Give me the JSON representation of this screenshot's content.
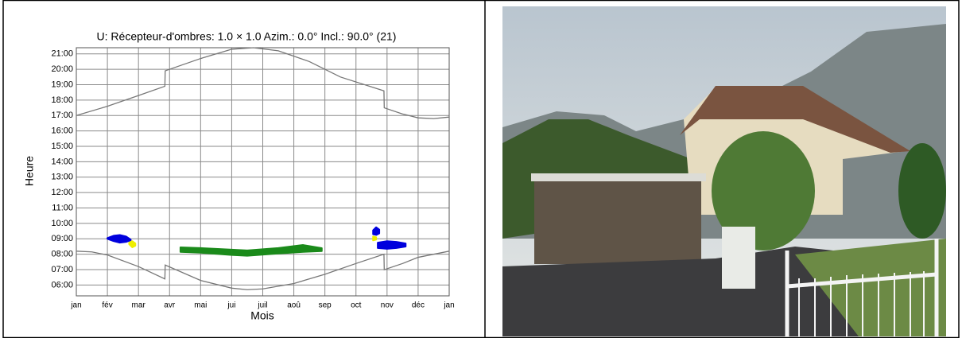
{
  "chart_data": {
    "type": "line",
    "title": "U: Récepteur-d'ombres: 1.0 × 1.0  Azim.: 0.0°  Incl.: 90.0° (21)",
    "xlabel": "Mois",
    "ylabel": "Heure",
    "xlim": [
      0,
      12
    ],
    "ylim": [
      5.3,
      21.4
    ],
    "xticks": [
      {
        "value": 0,
        "label": "jan"
      },
      {
        "value": 1,
        "label": "fév"
      },
      {
        "value": 2,
        "label": "mar"
      },
      {
        "value": 3,
        "label": "avr"
      },
      {
        "value": 4,
        "label": "mai"
      },
      {
        "value": 5,
        "label": "jui"
      },
      {
        "value": 6,
        "label": "juil"
      },
      {
        "value": 7,
        "label": "aoû"
      },
      {
        "value": 8,
        "label": "sep"
      },
      {
        "value": 9,
        "label": "oct"
      },
      {
        "value": 10,
        "label": "nov"
      },
      {
        "value": 11,
        "label": "déc"
      },
      {
        "value": 12,
        "label": "jan"
      }
    ],
    "yticks": [
      {
        "value": 6,
        "label": "06:00"
      },
      {
        "value": 7,
        "label": "07:00"
      },
      {
        "value": 8,
        "label": "08:00"
      },
      {
        "value": 9,
        "label": "09:00"
      },
      {
        "value": 10,
        "label": "10:00"
      },
      {
        "value": 11,
        "label": "11:00"
      },
      {
        "value": 12,
        "label": "12:00"
      },
      {
        "value": 13,
        "label": "13:00"
      },
      {
        "value": 14,
        "label": "14:00"
      },
      {
        "value": 15,
        "label": "15:00"
      },
      {
        "value": 16,
        "label": "16:00"
      },
      {
        "value": 17,
        "label": "17:00"
      },
      {
        "value": 18,
        "label": "18:00"
      },
      {
        "value": 19,
        "label": "19:00"
      },
      {
        "value": 20,
        "label": "20:00"
      },
      {
        "value": 21,
        "label": "21:00"
      }
    ],
    "grid": true,
    "series": [
      {
        "color": "#777777",
        "x": [
          0,
          1,
          2,
          2.85,
          2.86,
          4,
          5,
          5.7,
          6.5,
          7.5,
          8.5,
          9.9,
          9.91,
          10.5,
          11,
          11.5,
          12
        ],
        "values": [
          17.0,
          17.6,
          18.3,
          18.9,
          19.9,
          20.7,
          21.3,
          21.4,
          21.2,
          20.5,
          19.5,
          18.6,
          17.5,
          17.1,
          16.85,
          16.8,
          16.9
        ]
      },
      {
        "color": "#777777",
        "x": [
          0,
          0.5,
          1,
          2,
          2.85,
          2.86,
          4,
          5,
          5.5,
          6,
          7,
          8,
          9,
          9.9,
          9.91,
          10.5,
          11,
          12
        ],
        "values": [
          8.2,
          8.15,
          7.95,
          7.2,
          6.4,
          7.3,
          6.3,
          5.8,
          5.7,
          5.75,
          6.1,
          6.7,
          7.4,
          8.0,
          7.0,
          7.4,
          7.8,
          8.2
        ]
      }
    ],
    "areas": [
      {
        "color": "#0000dd",
        "x": [
          1.0,
          1.2,
          1.4,
          1.6,
          1.75
        ],
        "high": [
          9.05,
          9.2,
          9.25,
          9.15,
          8.95
        ],
        "low": [
          9.0,
          8.85,
          8.75,
          8.8,
          8.9
        ]
      },
      {
        "color": "#eeee00",
        "x": [
          1.7,
          1.8,
          1.9
        ],
        "high": [
          8.75,
          8.85,
          8.7
        ],
        "low": [
          8.65,
          8.45,
          8.55
        ]
      },
      {
        "color": "#1a8a1a",
        "x": [
          3.35,
          4,
          5,
          5.5,
          6.5,
          7.3,
          7.9
        ],
        "high": [
          8.45,
          8.4,
          8.3,
          8.25,
          8.4,
          8.6,
          8.4
        ],
        "low": [
          8.15,
          8.1,
          7.95,
          7.9,
          8.05,
          8.15,
          8.2
        ]
      },
      {
        "color": "#0000dd",
        "x": [
          9.55,
          9.65,
          9.75
        ],
        "high": [
          9.55,
          9.75,
          9.6
        ],
        "low": [
          9.3,
          9.25,
          9.35
        ]
      },
      {
        "color": "#eeee00",
        "x": [
          9.55,
          9.65
        ],
        "high": [
          9.15,
          9.1
        ],
        "low": [
          8.9,
          8.95
        ]
      },
      {
        "color": "#0000dd",
        "x": [
          9.7,
          10.0,
          10.3,
          10.6
        ],
        "high": [
          8.75,
          8.85,
          8.8,
          8.7
        ],
        "low": [
          8.4,
          8.35,
          8.4,
          8.5
        ]
      }
    ]
  }
}
